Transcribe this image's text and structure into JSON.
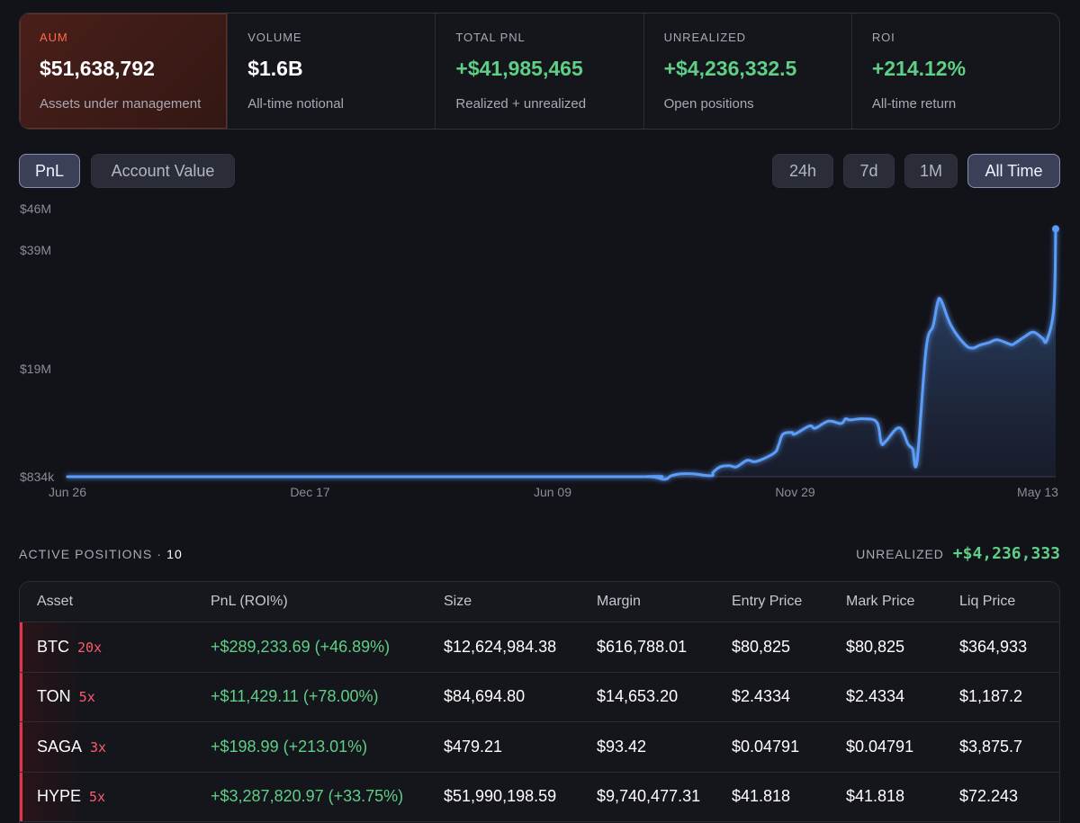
{
  "stats": [
    {
      "label": "AUM",
      "value": "$51,638,792",
      "sub": "Assets under management",
      "active": true,
      "green": false
    },
    {
      "label": "VOLUME",
      "value": "$1.6B",
      "sub": "All-time notional",
      "active": false,
      "green": false
    },
    {
      "label": "TOTAL PNL",
      "value": "+$41,985,465",
      "sub": "Realized + unrealized",
      "active": false,
      "green": true
    },
    {
      "label": "UNREALIZED",
      "value": "+$4,236,332.5",
      "sub": "Open positions",
      "active": false,
      "green": true
    },
    {
      "label": "ROI",
      "value": "+214.12%",
      "sub": "All-time return",
      "active": false,
      "green": true
    }
  ],
  "toggles": {
    "metric": [
      {
        "label": "PnL",
        "selected": true
      },
      {
        "label": "Account Value",
        "selected": false
      }
    ],
    "range": [
      {
        "label": "24h",
        "selected": false
      },
      {
        "label": "7d",
        "selected": false
      },
      {
        "label": "1M",
        "selected": false
      },
      {
        "label": "All Time",
        "selected": true
      }
    ]
  },
  "chart_data": {
    "type": "area",
    "y_ticks": [
      {
        "label": "$46M",
        "value": 46
      },
      {
        "label": "$39M",
        "value": 39
      },
      {
        "label": "$19M",
        "value": 19
      },
      {
        "label": "$834k",
        "value": 0.834
      }
    ],
    "x_ticks": [
      "Jun 26",
      "Dec 17",
      "Jun 09",
      "Nov 29",
      "May 13"
    ],
    "ylim": [
      0.834,
      46
    ],
    "line_color": "#5b9dfa",
    "series": [
      {
        "x": [
          0,
          600,
          650,
          668,
          675,
          685,
          700,
          720,
          722,
          730,
          740,
          748,
          760,
          770,
          790,
          795,
          800,
          810,
          813,
          830,
          836,
          851,
          865,
          870,
          875,
          890,
          905,
          910,
          915,
          930,
          940,
          945,
          950,
          960,
          968,
          973,
          977,
          988,
          1003,
          1012,
          1020,
          1030,
          1040,
          1055,
          1060,
          1070,
          1080,
          1090,
          1095,
          1103,
          1105
        ],
        "y": [
          0.834,
          0.834,
          0.85,
          0.4,
          1.0,
          1.3,
          1.3,
          1.0,
          1.6,
          2.5,
          2.7,
          2.5,
          3.6,
          3.4,
          4.8,
          6.1,
          8.0,
          8.3,
          8.0,
          9.4,
          9.0,
          10.2,
          9.8,
          10.6,
          10.4,
          10.6,
          10.0,
          6.5,
          6.8,
          9.1,
          6.3,
          5.5,
          3.5,
          22.3,
          26.3,
          30.2,
          30.5,
          26.3,
          23.2,
          22.5,
          23.0,
          23.4,
          23.9,
          23.1,
          23.4,
          24.4,
          25.2,
          24.2,
          23.8,
          29.5,
          42.6
        ]
      }
    ]
  },
  "positions": {
    "title": "ACTIVE POSITIONS",
    "count": "10",
    "unrealized_label": "UNREALIZED",
    "unrealized_value": "+$4,236,333",
    "columns": [
      "Asset",
      "PnL (ROI%)",
      "Size",
      "Margin",
      "Entry Price",
      "Mark Price",
      "Liq Price"
    ],
    "rows": [
      {
        "asset": "BTC",
        "lev": "20x",
        "pnl": "+$289,233.69 (+46.89%)",
        "size": "$12,624,984.38",
        "margin": "$616,788.01",
        "entry": "$80,825",
        "mark": "$80,825",
        "liq": "$364,933"
      },
      {
        "asset": "TON",
        "lev": "5x",
        "pnl": "+$11,429.11 (+78.00%)",
        "size": "$84,694.80",
        "margin": "$14,653.20",
        "entry": "$2.4334",
        "mark": "$2.4334",
        "liq": "$1,187.2"
      },
      {
        "asset": "SAGA",
        "lev": "3x",
        "pnl": "+$198.99 (+213.01%)",
        "size": "$479.21",
        "margin": "$93.42",
        "entry": "$0.04791",
        "mark": "$0.04791",
        "liq": "$3,875.7"
      },
      {
        "asset": "HYPE",
        "lev": "5x",
        "pnl": "+$3,287,820.97 (+33.75%)",
        "size": "$51,990,198.59",
        "margin": "$9,740,477.31",
        "entry": "$41.818",
        "mark": "$41.818",
        "liq": "$72.243"
      }
    ]
  }
}
